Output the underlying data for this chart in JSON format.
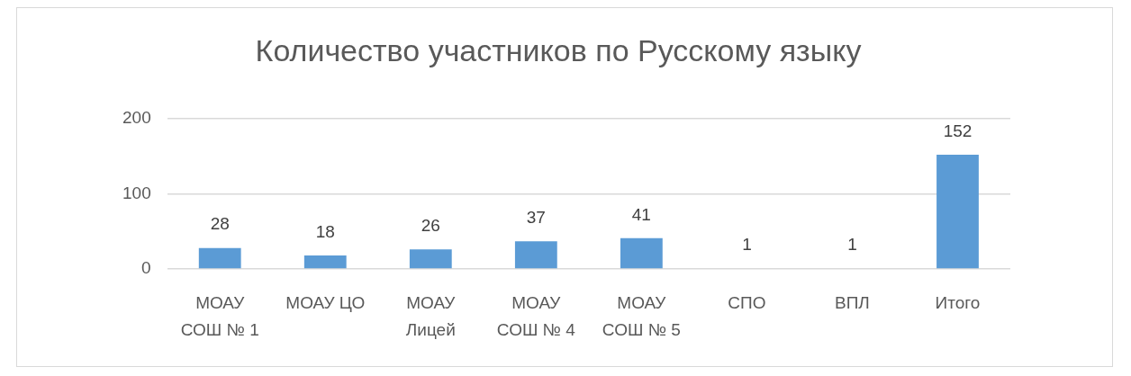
{
  "chart_data": {
    "type": "bar",
    "title": "Количество участников по Русскому языку",
    "categories": [
      "МОАУ СОШ № 1",
      "МОАУ ЦО",
      "МОАУ Лицей",
      "МОАУ СОШ № 4",
      "МОАУ СОШ № 5",
      "СПО",
      "ВПЛ",
      "Итого"
    ],
    "values": [
      28,
      18,
      26,
      37,
      41,
      1,
      1,
      152
    ],
    "color": "#5b9bd5",
    "ylim": [
      0,
      200
    ],
    "yticks": [
      0,
      100,
      200
    ],
    "grid": "y",
    "data_labels": true
  }
}
